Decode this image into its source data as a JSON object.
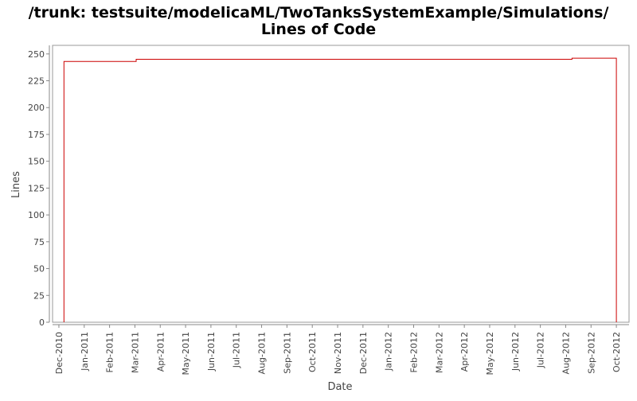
{
  "chart_data": {
    "type": "line",
    "title": "/trunk: testsuite/modelicaML/TwoTanksSystemExample/Simulations/",
    "subtitle": "Lines of Code",
    "x_label": "Date",
    "y_label": "Lines",
    "x": [
      0.2,
      0.2,
      3.05,
      3.05,
      20.25,
      20.25,
      22,
      22
    ],
    "series": [
      {
        "name": "Lines",
        "color": "#cc0000",
        "values": [
          0,
          243,
          243,
          245,
          245,
          246,
          246,
          0
        ]
      }
    ],
    "xlim": [
      -0.25,
      22.5
    ],
    "xticks": [
      {
        "value": 0,
        "label": "Dec-2010"
      },
      {
        "value": 1,
        "label": "Jan-2011"
      },
      {
        "value": 2,
        "label": "Feb-2011"
      },
      {
        "value": 3,
        "label": "Mar-2011"
      },
      {
        "value": 4,
        "label": "Apr-2011"
      },
      {
        "value": 5,
        "label": "May-2011"
      },
      {
        "value": 6,
        "label": "Jun-2011"
      },
      {
        "value": 7,
        "label": "Jul-2011"
      },
      {
        "value": 8,
        "label": "Aug-2011"
      },
      {
        "value": 9,
        "label": "Sep-2011"
      },
      {
        "value": 10,
        "label": "Oct-2011"
      },
      {
        "value": 11,
        "label": "Nov-2011"
      },
      {
        "value": 12,
        "label": "Dec-2011"
      },
      {
        "value": 13,
        "label": "Jan-2012"
      },
      {
        "value": 14,
        "label": "Feb-2012"
      },
      {
        "value": 15,
        "label": "Mar-2012"
      },
      {
        "value": 16,
        "label": "Apr-2012"
      },
      {
        "value": 17,
        "label": "May-2012"
      },
      {
        "value": 18,
        "label": "Jun-2012"
      },
      {
        "value": 19,
        "label": "Jul-2012"
      },
      {
        "value": 20,
        "label": "Aug-2012"
      },
      {
        "value": 21,
        "label": "Sep-2012"
      },
      {
        "value": 22,
        "label": "Oct-2012"
      }
    ],
    "ylim": [
      0,
      258
    ],
    "yticks": [
      0,
      25,
      50,
      75,
      100,
      125,
      150,
      175,
      200,
      225,
      250
    ]
  }
}
